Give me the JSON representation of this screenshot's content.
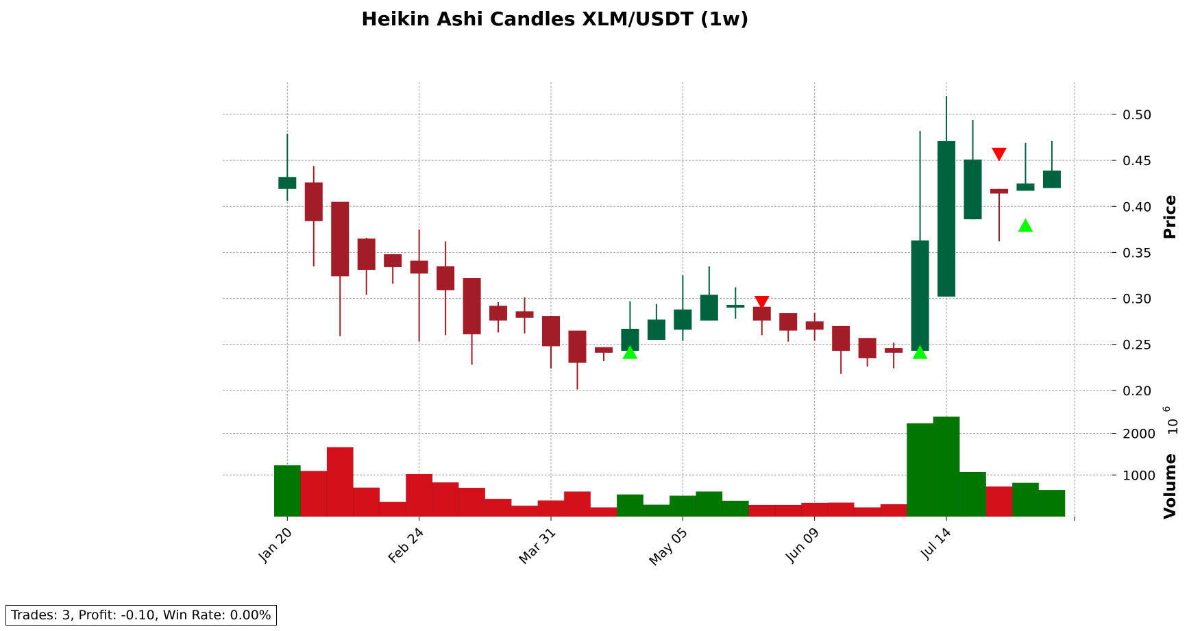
{
  "chart_data": {
    "type": "candlestick",
    "title": "Heikin Ashi Candles XLM/USDT (1w)",
    "price_ylabel": "Price",
    "volume_ylabel": "Volume",
    "volume_exponent_base": "10",
    "volume_exponent_power": "6",
    "price_ylim": [
      0.185,
      0.535
    ],
    "price_yticks": [
      {
        "value": 0.2,
        "label": "0.20"
      },
      {
        "value": 0.25,
        "label": "0.25"
      },
      {
        "value": 0.3,
        "label": "0.30"
      },
      {
        "value": 0.35,
        "label": "0.35"
      },
      {
        "value": 0.4,
        "label": "0.40"
      },
      {
        "value": 0.45,
        "label": "0.45"
      },
      {
        "value": 0.5,
        "label": "0.50"
      }
    ],
    "volume_ylim": [
      0,
      2700
    ],
    "volume_yticks": [
      {
        "value": 1000,
        "label": "1000"
      },
      {
        "value": 2000,
        "label": "2000"
      }
    ],
    "x_ticks": [
      {
        "index": 0,
        "label": "Jan 20"
      },
      {
        "index": 5,
        "label": "Feb 24"
      },
      {
        "index": 10,
        "label": "Mar 31"
      },
      {
        "index": 15,
        "label": "May 05"
      },
      {
        "index": 20,
        "label": "Jun 09"
      },
      {
        "index": 25,
        "label": "Jul 14"
      }
    ],
    "candles": [
      {
        "open": 0.419,
        "close": 0.432,
        "high": 0.479,
        "low": 0.406,
        "volume": 1230
      },
      {
        "open": 0.426,
        "close": 0.384,
        "high": 0.444,
        "low": 0.335,
        "volume": 1095
      },
      {
        "open": 0.405,
        "close": 0.324,
        "high": 0.405,
        "low": 0.259,
        "volume": 1665
      },
      {
        "open": 0.365,
        "close": 0.331,
        "high": 0.366,
        "low": 0.304,
        "volume": 695
      },
      {
        "open": 0.348,
        "close": 0.334,
        "high": 0.348,
        "low": 0.316,
        "volume": 350
      },
      {
        "open": 0.341,
        "close": 0.327,
        "high": 0.375,
        "low": 0.253,
        "volume": 1020
      },
      {
        "open": 0.335,
        "close": 0.309,
        "high": 0.362,
        "low": 0.26,
        "volume": 820
      },
      {
        "open": 0.322,
        "close": 0.261,
        "high": 0.322,
        "low": 0.228,
        "volume": 690
      },
      {
        "open": 0.292,
        "close": 0.276,
        "high": 0.296,
        "low": 0.263,
        "volume": 425
      },
      {
        "open": 0.286,
        "close": 0.279,
        "high": 0.301,
        "low": 0.262,
        "volume": 260
      },
      {
        "open": 0.281,
        "close": 0.248,
        "high": 0.281,
        "low": 0.224,
        "volume": 385
      },
      {
        "open": 0.265,
        "close": 0.23,
        "high": 0.265,
        "low": 0.201,
        "volume": 600
      },
      {
        "open": 0.247,
        "close": 0.241,
        "high": 0.247,
        "low": 0.232,
        "volume": 220
      },
      {
        "open": 0.243,
        "close": 0.267,
        "high": 0.297,
        "low": 0.243,
        "volume": 530
      },
      {
        "open": 0.255,
        "close": 0.277,
        "high": 0.294,
        "low": 0.255,
        "volume": 285
      },
      {
        "open": 0.266,
        "close": 0.288,
        "high": 0.325,
        "low": 0.254,
        "volume": 500
      },
      {
        "open": 0.276,
        "close": 0.304,
        "high": 0.335,
        "low": 0.276,
        "volume": 600
      },
      {
        "open": 0.29,
        "close": 0.293,
        "high": 0.312,
        "low": 0.278,
        "volume": 380
      },
      {
        "open": 0.291,
        "close": 0.276,
        "high": 0.291,
        "low": 0.26,
        "volume": 280
      },
      {
        "open": 0.284,
        "close": 0.265,
        "high": 0.284,
        "low": 0.253,
        "volume": 280
      },
      {
        "open": 0.275,
        "close": 0.266,
        "high": 0.284,
        "low": 0.254,
        "volume": 330
      },
      {
        "open": 0.27,
        "close": 0.243,
        "high": 0.27,
        "low": 0.218,
        "volume": 335
      },
      {
        "open": 0.257,
        "close": 0.235,
        "high": 0.257,
        "low": 0.226,
        "volume": 220
      },
      {
        "open": 0.246,
        "close": 0.241,
        "high": 0.252,
        "low": 0.224,
        "volume": 295
      },
      {
        "open": 0.243,
        "close": 0.363,
        "high": 0.482,
        "low": 0.243,
        "volume": 2240
      },
      {
        "open": 0.302,
        "close": 0.471,
        "high": 0.52,
        "low": 0.302,
        "volume": 2400
      },
      {
        "open": 0.386,
        "close": 0.451,
        "high": 0.494,
        "low": 0.386,
        "volume": 1070
      },
      {
        "open": 0.419,
        "close": 0.414,
        "high": 0.419,
        "low": 0.362,
        "volume": 720
      },
      {
        "open": 0.417,
        "close": 0.425,
        "high": 0.469,
        "low": 0.417,
        "volume": 810
      },
      {
        "open": 0.42,
        "close": 0.439,
        "high": 0.471,
        "low": 0.42,
        "volume": 640
      }
    ],
    "buy_signals": [
      {
        "index": 13,
        "price": 0.241
      },
      {
        "index": 24,
        "price": 0.241
      },
      {
        "index": 28,
        "price": 0.379
      }
    ],
    "sell_signals": [
      {
        "index": 18,
        "price": 0.296
      },
      {
        "index": 27,
        "price": 0.457
      }
    ],
    "colors": {
      "candle_up": "#006340",
      "candle_down": "#a21d27",
      "volume_up": "#007800",
      "volume_down": "#d4101b",
      "buy_marker": "#00ff00",
      "sell_marker": "#ff0000",
      "grid": "#a0a0a0"
    },
    "grid": true
  },
  "stats": {
    "text": "Trades: 3, Profit: -0.10, Win Rate: 0.00%"
  }
}
